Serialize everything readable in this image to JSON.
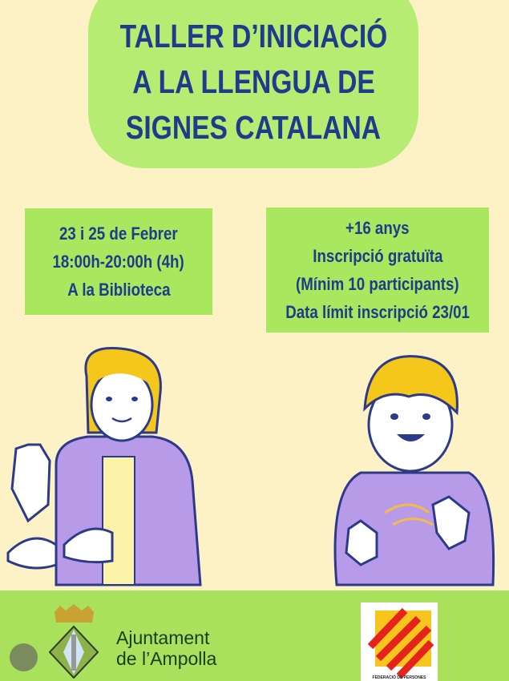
{
  "title": {
    "lines": [
      "TALLER D’INICIACIÓ",
      "A LA LLENGUA DE",
      "SIGNES CATALANA"
    ]
  },
  "info_left": {
    "lines": [
      "23 i 25 de Febrer",
      "18:00h-20:00h (4h)",
      "A la Biblioteca"
    ]
  },
  "info_right": {
    "lines": [
      "+16 anys",
      "Inscripció gratuïta",
      "(Mínim 10 participants)",
      "Data límit inscripció 23/01"
    ]
  },
  "footer": {
    "council": [
      "Ajuntament",
      "de l’Ampolla"
    ],
    "fesoca_logo": "FESOCA",
    "fesoca_sub": "FEDERACIÓ DE PERSONES"
  },
  "colors": {
    "background": "#fdf1c6",
    "green": "#a8e75e",
    "text": "#1e3b8c",
    "hoodie": "#b79be8",
    "hair": "#f5c71a"
  }
}
